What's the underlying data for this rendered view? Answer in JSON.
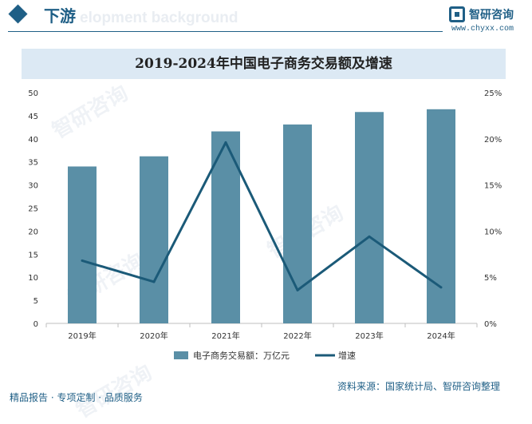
{
  "header": {
    "title": "下游",
    "subtitle": "elopment background"
  },
  "brand": {
    "name": "智研咨询",
    "url": "www.chyxx.com"
  },
  "watermark_text": "智研咨询",
  "footer": {
    "left": "精品报告 · 专项定制 · 品质服务",
    "source": "资料来源：国家统计局、智研咨询整理"
  },
  "colors": {
    "bar": "#5a8fa6",
    "line": "#1b5a78",
    "brand": "#1f5f86",
    "banner": "#dce9f4"
  },
  "chart_data": {
    "type": "bar",
    "title": "2019-2024年中国电子商务交易额及增速",
    "categories": [
      "2019年",
      "2020年",
      "2021年",
      "2022年",
      "2023年",
      "2024年"
    ],
    "series": [
      {
        "name": "电子商务交易额：万亿元",
        "type": "bar",
        "axis": "left",
        "values": [
          34.0,
          36.2,
          41.6,
          43.1,
          45.8,
          46.4
        ]
      },
      {
        "name": "增速",
        "type": "line",
        "axis": "right",
        "values": [
          6.8,
          4.5,
          19.6,
          3.6,
          9.4,
          3.9
        ]
      }
    ],
    "y_left": {
      "min": 0,
      "max": 50,
      "step": 5,
      "ticks": [
        "0",
        "5",
        "10",
        "15",
        "20",
        "25",
        "30",
        "35",
        "40",
        "45",
        "50"
      ]
    },
    "y_right": {
      "min": 0,
      "max": 25,
      "step": 5,
      "ticks": [
        "0%",
        "5%",
        "10%",
        "15%",
        "20%",
        "25%"
      ]
    },
    "grid": false,
    "legend": "bottom-center"
  }
}
